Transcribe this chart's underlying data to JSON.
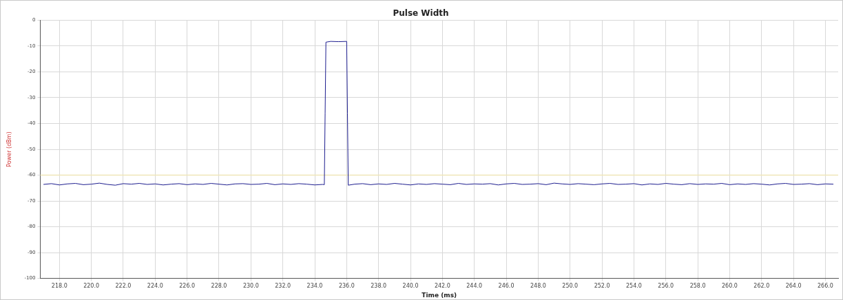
{
  "chart_data": {
    "type": "line",
    "title": "Pulse Width",
    "xlabel": "Time (ms)",
    "ylabel": "Power (dBm)",
    "xlim": [
      216.8,
      266.8
    ],
    "ylim": [
      -100,
      0
    ],
    "xticks": [
      {
        "value": 218,
        "label": "218.0"
      },
      {
        "value": 220,
        "label": "220.0"
      },
      {
        "value": 222,
        "label": "222.0"
      },
      {
        "value": 224,
        "label": "224.0"
      },
      {
        "value": 226,
        "label": "226.0"
      },
      {
        "value": 228,
        "label": "228.0"
      },
      {
        "value": 230,
        "label": "230.0"
      },
      {
        "value": 232,
        "label": "232.0"
      },
      {
        "value": 234,
        "label": "234.0"
      },
      {
        "value": 236,
        "label": "236.0"
      },
      {
        "value": 238,
        "label": "238.0"
      },
      {
        "value": 240,
        "label": "240.0"
      },
      {
        "value": 242,
        "label": "242.0"
      },
      {
        "value": 244,
        "label": "244.0"
      },
      {
        "value": 246,
        "label": "246.0"
      },
      {
        "value": 248,
        "label": "248.0"
      },
      {
        "value": 250,
        "label": "250.0"
      },
      {
        "value": 252,
        "label": "252.0"
      },
      {
        "value": 254,
        "label": "254.0"
      },
      {
        "value": 256,
        "label": "256.0"
      },
      {
        "value": 258,
        "label": "258.0"
      },
      {
        "value": 260,
        "label": "260.0"
      },
      {
        "value": 262,
        "label": "262.0"
      },
      {
        "value": 264,
        "label": "264.0"
      },
      {
        "value": 266,
        "label": "266.0"
      }
    ],
    "yticks": [
      0,
      -10,
      -20,
      -30,
      -40,
      -50,
      -60,
      -70,
      -80,
      -90,
      -100
    ],
    "grid": true,
    "legend": false,
    "marker": "none",
    "line_style": "solid",
    "ref_lines": [
      {
        "axis": "y",
        "value": -60,
        "color": "#efe6b8"
      }
    ],
    "series": [
      {
        "color": "#1c1c8e",
        "x": [
          217,
          217.5,
          218,
          218.5,
          219,
          219.5,
          220,
          220.5,
          221,
          221.5,
          222,
          222.5,
          223,
          223.5,
          224,
          224.5,
          225,
          225.5,
          226,
          226.5,
          227,
          227.5,
          228,
          228.5,
          229,
          229.5,
          230,
          230.5,
          231,
          231.5,
          232,
          232.5,
          233,
          233.5,
          234,
          234.5,
          234.6,
          234.65,
          234.7,
          235,
          235.5,
          236,
          236.05,
          236.1,
          236.5,
          237,
          237.5,
          238,
          238.5,
          239,
          239.5,
          240,
          240.5,
          241,
          241.5,
          242,
          242.5,
          243,
          243.5,
          244,
          244.5,
          245,
          245.5,
          246,
          246.5,
          247,
          247.5,
          248,
          248.5,
          249,
          249.5,
          250,
          250.5,
          251,
          251.5,
          252,
          252.5,
          253,
          253.5,
          254,
          254.5,
          255,
          255.5,
          256,
          256.5,
          257,
          257.5,
          258,
          258.5,
          259,
          259.5,
          260,
          260.5,
          261,
          261.5,
          262,
          262.5,
          263,
          263.5,
          264,
          264.5,
          265,
          265.5,
          266,
          266.5
        ],
        "values": [
          -63.6,
          -63.3,
          -63.8,
          -63.4,
          -63.2,
          -63.7,
          -63.5,
          -63.1,
          -63.6,
          -63.9,
          -63.3,
          -63.5,
          -63.2,
          -63.6,
          -63.4,
          -63.8,
          -63.5,
          -63.3,
          -63.7,
          -63.4,
          -63.6,
          -63.2,
          -63.5,
          -63.8,
          -63.4,
          -63.3,
          -63.6,
          -63.5,
          -63.2,
          -63.7,
          -63.4,
          -63.6,
          -63.3,
          -63.5,
          -63.8,
          -63.6,
          -63.7,
          -36,
          -8.5,
          -8.2,
          -8.3,
          -8.2,
          -36,
          -63.9,
          -63.5,
          -63.3,
          -63.7,
          -63.4,
          -63.6,
          -63.2,
          -63.5,
          -63.8,
          -63.4,
          -63.6,
          -63.3,
          -63.5,
          -63.7,
          -63.2,
          -63.6,
          -63.4,
          -63.5,
          -63.3,
          -63.8,
          -63.4,
          -63.2,
          -63.6,
          -63.5,
          -63.3,
          -63.7,
          -63.1,
          -63.4,
          -63.6,
          -63.3,
          -63.5,
          -63.7,
          -63.4,
          -63.2,
          -63.6,
          -63.5,
          -63.3,
          -63.8,
          -63.4,
          -63.6,
          -63.2,
          -63.5,
          -63.7,
          -63.3,
          -63.6,
          -63.4,
          -63.5,
          -63.2,
          -63.7,
          -63.4,
          -63.6,
          -63.3,
          -63.5,
          -63.8,
          -63.4,
          -63.2,
          -63.6,
          -63.5,
          -63.3,
          -63.7,
          -63.4,
          -63.5
        ]
      }
    ]
  }
}
